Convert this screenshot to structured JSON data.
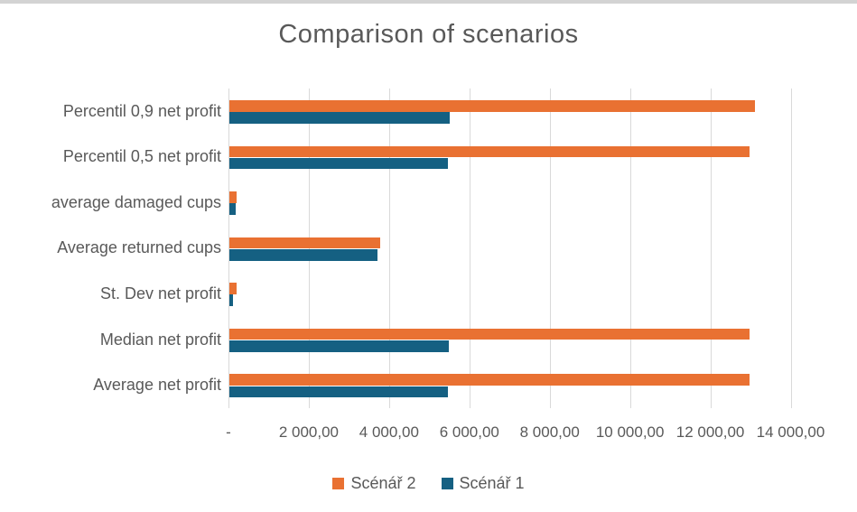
{
  "window": {
    "top_edge_color": "#d3d3d3"
  },
  "chart_data": {
    "type": "bar",
    "orientation": "horizontal",
    "title": "Comparison of scenarios",
    "categories": [
      "Percentil 0,9 net profit",
      "Percentil 0,5 net profit",
      "average damaged cups",
      "Average returned cups",
      "St. Dev net profit",
      "Median net profit",
      "Average net profit"
    ],
    "series": [
      {
        "name": "Scénář 2",
        "color": "#E97132",
        "values": [
          13100,
          12950,
          180,
          3760,
          190,
          12950,
          12950
        ]
      },
      {
        "name": "Scénář 1",
        "color": "#156082",
        "values": [
          5490,
          5440,
          165,
          3690,
          80,
          5460,
          5450
        ]
      }
    ],
    "x_tick_labels": [
      "-",
      "2 000,00",
      "4 000,00",
      "6 000,00",
      "8 000,00",
      "10 000,00",
      "12 000,00",
      "14 000,00"
    ],
    "xlim": [
      0,
      14000
    ],
    "x_tick_step": 2000,
    "gridlines": true,
    "legend_position": "bottom",
    "text_color": "#595959",
    "gridline_color": "#D9D9D9"
  },
  "legend": {
    "items": [
      {
        "label": "Scénář 2",
        "color": "#E97132"
      },
      {
        "label": "Scénář 1",
        "color": "#156082"
      }
    ]
  }
}
